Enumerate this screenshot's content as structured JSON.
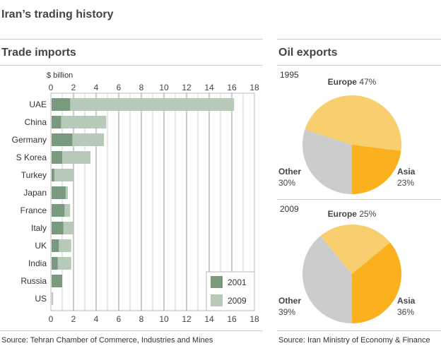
{
  "title": "Iran’s trading history",
  "chart_data": [
    {
      "type": "bar",
      "orientation": "horizontal",
      "title": "Trade imports",
      "xlabel": "$ billion",
      "xlim": [
        0,
        18
      ],
      "xticks": [
        0,
        2,
        4,
        6,
        8,
        10,
        12,
        14,
        16,
        18
      ],
      "grid": true,
      "legend": "bottom-right",
      "categories": [
        "UAE",
        "China",
        "Germany",
        "S Korea",
        "Turkey",
        "Japan",
        "France",
        "Italy",
        "UK",
        "India",
        "Russia",
        "US"
      ],
      "series": [
        {
          "name": "2001",
          "color": "#7a9a7e",
          "values": [
            1.7,
            0.9,
            1.9,
            1.0,
            0.3,
            1.3,
            1.2,
            1.1,
            0.7,
            0.6,
            1.0,
            0.0
          ]
        },
        {
          "name": "2009",
          "color": "#b7c9b8",
          "values": [
            16.2,
            4.9,
            4.7,
            3.5,
            2.0,
            1.5,
            1.7,
            2.0,
            1.8,
            1.8,
            null,
            0.2
          ]
        }
      ],
      "source": "Source: Tehran Chamber of Commerce, Industries and Mines"
    },
    {
      "type": "pie",
      "title": "Oil exports",
      "source": "Source: Iran Ministry of Economy & Finance",
      "pies": [
        {
          "label": "1995",
          "slices": [
            {
              "name": "Other",
              "value": 30,
              "color": "#cccccc"
            },
            {
              "name": "Europe",
              "value": 47,
              "color": "#f8cf6f"
            },
            {
              "name": "Asia",
              "value": 23,
              "color": "#fbb11d"
            }
          ]
        },
        {
          "label": "2009",
          "slices": [
            {
              "name": "Other",
              "value": 39,
              "color": "#cccccc"
            },
            {
              "name": "Europe",
              "value": 25,
              "color": "#f8cf6f"
            },
            {
              "name": "Asia",
              "value": 36,
              "color": "#fbb11d"
            }
          ]
        }
      ]
    }
  ]
}
